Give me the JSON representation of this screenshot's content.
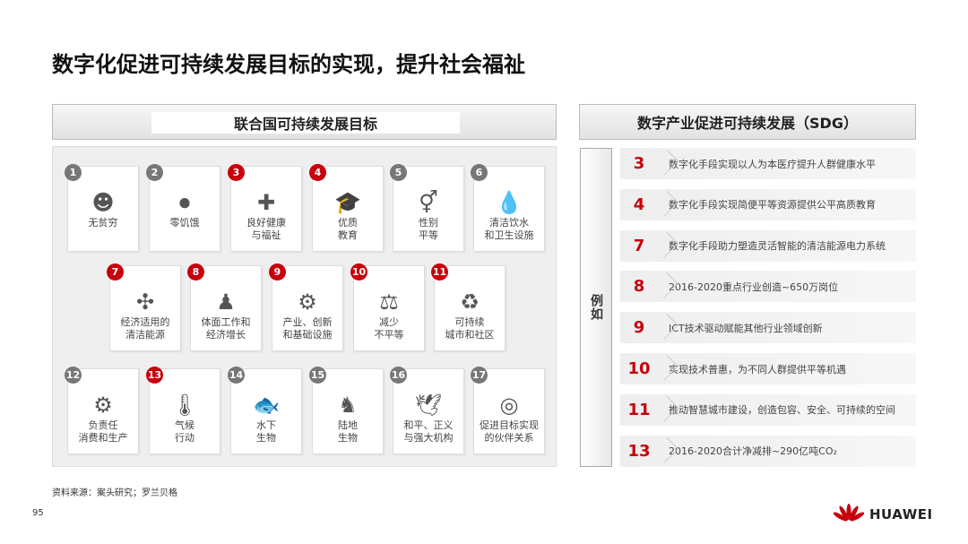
{
  "title": "数字化促进可持续发展目标的实现，提升社会福祉",
  "left_header": "联合国可持续发展目标",
  "right_header": "数字产业促进可持续发展（SDG）",
  "colors": {
    "accent": "#c7000b",
    "gray_badge": "#777777"
  },
  "goals": [
    {
      "n": "1",
      "label": "无贫穷",
      "icon": "people-coins-icon",
      "hl": false
    },
    {
      "n": "2",
      "label": "零饥饿",
      "icon": "plate-cutlery-icon",
      "hl": false
    },
    {
      "n": "3",
      "label": "良好健康\n与福祉",
      "icon": "medical-book-icon",
      "hl": true
    },
    {
      "n": "4",
      "label": "优质\n教育",
      "icon": "graduation-cap-icon",
      "hl": true
    },
    {
      "n": "5",
      "label": "性别\n平等",
      "icon": "gender-icon",
      "hl": false
    },
    {
      "n": "6",
      "label": "清洁饮水\n和卫生设施",
      "icon": "water-drops-icon",
      "hl": false
    },
    {
      "n": "7",
      "label": "经济适用的\n清洁能源",
      "icon": "wind-turbine-icon",
      "hl": true
    },
    {
      "n": "8",
      "label": "体面工作和\n经济增长",
      "icon": "worker-desk-icon",
      "hl": true
    },
    {
      "n": "9",
      "label": "产业、创新\n和基础设施",
      "icon": "gear-bulb-icon",
      "hl": true
    },
    {
      "n": "10",
      "label": "减少\n不平等",
      "icon": "scale-icon",
      "hl": true
    },
    {
      "n": "11",
      "label": "可持续\n城市和社区",
      "icon": "leaf-cycle-icon",
      "hl": true
    },
    {
      "n": "12",
      "label": "负责任\n消费和生产",
      "icon": "people-gear-icon",
      "hl": false
    },
    {
      "n": "13",
      "label": "气候\n行动",
      "icon": "thermometer-icon",
      "hl": true
    },
    {
      "n": "14",
      "label": "水下\n生物",
      "icon": "fish-icon",
      "hl": false
    },
    {
      "n": "15",
      "label": "陆地\n生物",
      "icon": "horse-icon",
      "hl": false
    },
    {
      "n": "16",
      "label": "和平、正义\n与强大机构",
      "icon": "dove-icon",
      "hl": false
    },
    {
      "n": "17",
      "label": "促进目标实现\n的伙伴关系",
      "icon": "target-icon",
      "hl": false
    }
  ],
  "side_label": "例如",
  "examples": [
    {
      "n": "3",
      "text": "数字化手段实现以人为本医疗提升人群健康水平"
    },
    {
      "n": "4",
      "text": "数字化手段实现简便平等资源提供公平高质教育"
    },
    {
      "n": "7",
      "text": "数字化手段助力塑造灵活智能的清洁能源电力系统"
    },
    {
      "n": "8",
      "text": "2016-2020重点行业创造~650万岗位"
    },
    {
      "n": "9",
      "text": "ICT技术驱动赋能其他行业领域创新"
    },
    {
      "n": "10",
      "text": "实现技术普惠，为不同人群提供平等机遇"
    },
    {
      "n": "11",
      "text": "推动智慧城市建设，创造包容、安全、可持续的空间"
    },
    {
      "n": "13",
      "text": "2016-2020合计净减排~290亿吨CO₂"
    }
  ],
  "source": "资料来源：案头研究；罗兰贝格",
  "page_number": "95",
  "brand": "HUAWEI"
}
